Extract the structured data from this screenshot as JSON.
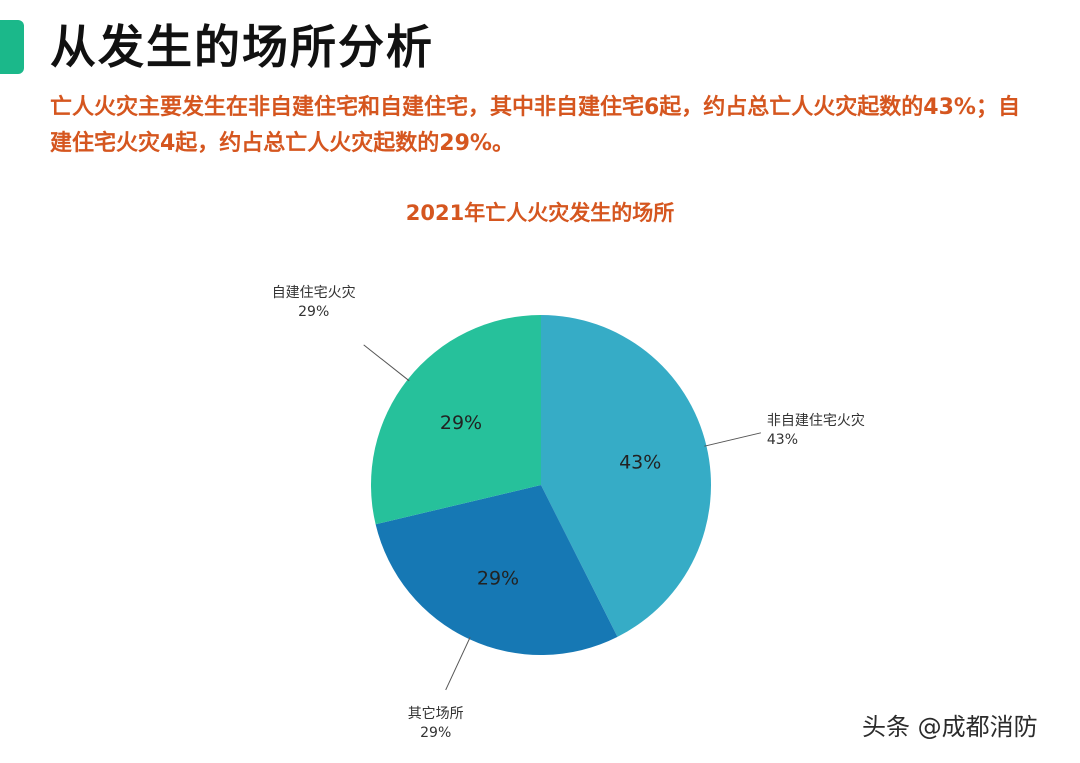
{
  "header": {
    "title": "从发生的场所分析",
    "summary": "亡人火灾主要发生在非自建住宅和自建住宅，其中非自建住宅6起，约占总亡人火灾起数的43%；自建住宅火灾4起，约占总亡人火灾起数的29%。"
  },
  "colors": {
    "accent_bar": "#1bb88a",
    "heading": "#111111",
    "summary_text": "#d5561f",
    "chart_title": "#d5561f"
  },
  "chart_data": {
    "type": "pie",
    "title": "2021年亡人火灾发生的场所",
    "start_angle_deg": 0,
    "direction": "clockwise",
    "slices": [
      {
        "label": "非自建住宅火灾",
        "value": 43,
        "display": "43%",
        "color": "#36acc6"
      },
      {
        "label": "其它场所",
        "value": 29,
        "display": "29%",
        "color": "#1678b4"
      },
      {
        "label": "自建住宅火灾",
        "value": 29,
        "display": "29%",
        "color": "#26c19b"
      }
    ]
  },
  "watermark": "头条 @成都消防"
}
